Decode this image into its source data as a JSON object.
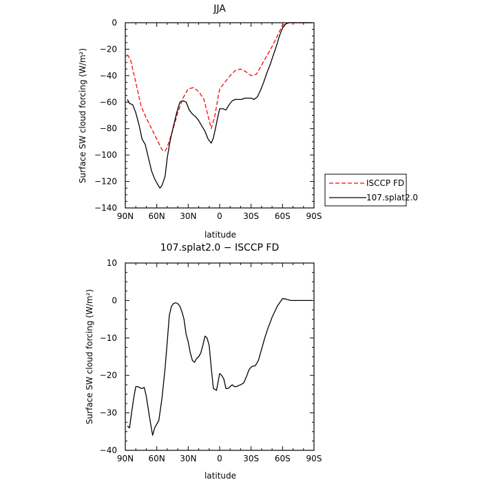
{
  "chart_data": [
    {
      "type": "line",
      "title": "JJA",
      "xlabel": "latitude",
      "ylabel": "Surface SW cloud forcing (W/m²)",
      "xlim": [
        90,
        -90
      ],
      "ylim": [
        -140,
        0
      ],
      "x_ticks": [
        90,
        60,
        30,
        0,
        -30,
        -60,
        -90
      ],
      "x_tick_labels": [
        "90N",
        "60N",
        "30N",
        "0",
        "30S",
        "60S",
        "90S"
      ],
      "y_ticks": [
        0,
        -20,
        -40,
        -60,
        -80,
        -100,
        -120,
        -140
      ],
      "y_tick_labels": [
        "0",
        "−20",
        "−40",
        "−60",
        "−80",
        "−100",
        "−120",
        "−140"
      ],
      "legend": {
        "placement": "right",
        "entries": [
          "ISCCP FD",
          "107.splat2.0"
        ]
      },
      "series": [
        {
          "name": "ISCCP FD",
          "color": "#ff0000",
          "dash": "dashed",
          "x": [
            88,
            85,
            80,
            75,
            70,
            65,
            60,
            55,
            52,
            50,
            45,
            40,
            35,
            30,
            25,
            20,
            15,
            10,
            8,
            5,
            0,
            -5,
            -10,
            -15,
            -20,
            -25,
            -30,
            -35,
            -40,
            -45,
            -50,
            -55,
            -60,
            -65,
            -68,
            -70,
            -75,
            -80,
            -85,
            -88
          ],
          "y": [
            -24,
            -28,
            -45,
            -63,
            -72,
            -80,
            -88,
            -96,
            -97,
            -94,
            -82,
            -68,
            -57,
            -50,
            -49,
            -52,
            -58,
            -74,
            -80,
            -72,
            -50,
            -45,
            -40,
            -36,
            -35,
            -37,
            -40,
            -39,
            -32,
            -25,
            -18,
            -10,
            -2,
            0,
            0,
            0,
            0,
            0,
            0,
            0
          ]
        },
        {
          "name": "107.splat2.0",
          "color": "#000000",
          "dash": "solid",
          "x": [
            88,
            86,
            83,
            80,
            77,
            74,
            71,
            68,
            65,
            62,
            60,
            57,
            55,
            52,
            50,
            47,
            44,
            41,
            38,
            35,
            32,
            29,
            26,
            23,
            20,
            17,
            14,
            11,
            8,
            6,
            4,
            2,
            0,
            -3,
            -6,
            -9,
            -12,
            -15,
            -18,
            -21,
            -24,
            -27,
            -30,
            -33,
            -36,
            -39,
            -42,
            -45,
            -48,
            -51,
            -54,
            -57,
            -60,
            -63,
            -66,
            -68,
            -72,
            -80,
            -88
          ],
          "y": [
            -58,
            -61,
            -62,
            -68,
            -77,
            -88,
            -92,
            -102,
            -112,
            -118,
            -121,
            -125,
            -123,
            -116,
            -102,
            -88,
            -78,
            -68,
            -60,
            -59,
            -60,
            -66,
            -69,
            -71,
            -74,
            -78,
            -82,
            -88,
            -91,
            -87,
            -80,
            -72,
            -65,
            -65,
            -66,
            -62,
            -59,
            -58,
            -58,
            -58,
            -57,
            -57,
            -57,
            -58,
            -56,
            -51,
            -45,
            -38,
            -32,
            -25,
            -18,
            -10,
            -4,
            -1,
            0,
            0,
            0,
            0,
            0
          ]
        }
      ]
    },
    {
      "type": "line",
      "title": "107.splat2.0 − ISCCP FD",
      "xlabel": "latitude",
      "ylabel": "Surface SW cloud forcing (W/m²)",
      "xlim": [
        90,
        -90
      ],
      "ylim": [
        -40,
        10
      ],
      "x_ticks": [
        90,
        60,
        30,
        0,
        -30,
        -60,
        -90
      ],
      "x_tick_labels": [
        "90N",
        "60N",
        "30N",
        "0",
        "30S",
        "60S",
        "90S"
      ],
      "y_ticks": [
        10,
        0,
        -10,
        -20,
        -30,
        -40
      ],
      "y_tick_labels": [
        "10",
        "0",
        "−10",
        "−20",
        "−30",
        "−40"
      ],
      "series": [
        {
          "color": "#000000",
          "dash": "solid",
          "x": [
            88,
            86,
            84,
            82,
            80,
            78,
            76,
            74,
            72,
            70,
            67,
            64,
            62,
            58,
            55,
            52,
            50,
            48,
            46,
            44,
            42,
            40,
            38,
            36,
            34,
            32,
            30,
            28,
            26,
            24,
            22,
            20,
            18,
            16,
            14,
            12,
            10,
            8,
            6,
            3,
            0,
            -2,
            -4,
            -6,
            -8,
            -10,
            -12,
            -14,
            -16,
            -18,
            -20,
            -23,
            -26,
            -28,
            -30,
            -32,
            -34,
            -37,
            -40,
            -43,
            -46,
            -50,
            -55,
            -60,
            -63,
            -65,
            -68,
            -72,
            -80,
            -88
          ],
          "y": [
            -33.5,
            -34,
            -30,
            -26,
            -23,
            -23,
            -23.3,
            -23.5,
            -23.2,
            -25.5,
            -31,
            -36,
            -34,
            -32,
            -26,
            -18,
            -11,
            -4,
            -1.5,
            -0.8,
            -0.6,
            -0.8,
            -1.5,
            -3,
            -5,
            -9,
            -11,
            -14,
            -16,
            -16.5,
            -15.5,
            -15,
            -14,
            -12,
            -9.5,
            -10,
            -12,
            -18,
            -23.5,
            -24,
            -19.5,
            -20,
            -21,
            -23.5,
            -23.5,
            -23,
            -22.5,
            -23,
            -23,
            -22.7,
            -22.5,
            -22,
            -20,
            -18.5,
            -17.8,
            -17.5,
            -17.4,
            -16,
            -13,
            -10,
            -7.5,
            -4.5,
            -1.5,
            0.5,
            0.4,
            0.2,
            0,
            0,
            0,
            0
          ]
        }
      ]
    }
  ]
}
